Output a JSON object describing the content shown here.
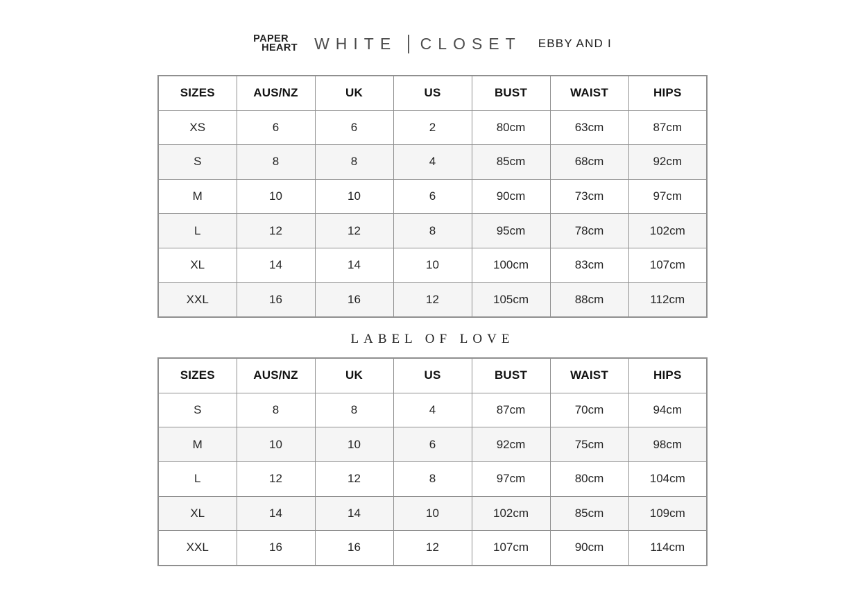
{
  "colors": {
    "row_alt": "#f5f5f5",
    "border": "#8f8f8f",
    "text": "#1c1c1c"
  },
  "brands": {
    "paper_heart_line1": "PAPER",
    "paper_heart_line2": "HEART",
    "white_closet_word1": "WHITE",
    "white_closet_word2": "CLOSET",
    "ebby_and_i": "EBBY AND I"
  },
  "label_of_love_title": "LABEL OF LOVE",
  "tables": [
    {
      "name": "paper-heart-white-closet-ebby-and-i-size-chart",
      "columns": [
        "SIZES",
        "AUS/NZ",
        "UK",
        "US",
        "BUST",
        "WAIST",
        "HIPS"
      ],
      "rows": [
        [
          "XS",
          "6",
          "6",
          "2",
          "80cm",
          "63cm",
          "87cm"
        ],
        [
          "S",
          "8",
          "8",
          "4",
          "85cm",
          "68cm",
          "92cm"
        ],
        [
          "M",
          "10",
          "10",
          "6",
          "90cm",
          "73cm",
          "97cm"
        ],
        [
          "L",
          "12",
          "12",
          "8",
          "95cm",
          "78cm",
          "102cm"
        ],
        [
          "XL",
          "14",
          "14",
          "10",
          "100cm",
          "83cm",
          "107cm"
        ],
        [
          "XXL",
          "16",
          "16",
          "12",
          "105cm",
          "88cm",
          "112cm"
        ]
      ]
    },
    {
      "name": "label-of-love-size-chart",
      "columns": [
        "SIZES",
        "AUS/NZ",
        "UK",
        "US",
        "BUST",
        "WAIST",
        "HIPS"
      ],
      "rows": [
        [
          "S",
          "8",
          "8",
          "4",
          "87cm",
          "70cm",
          "94cm"
        ],
        [
          "M",
          "10",
          "10",
          "6",
          "92cm",
          "75cm",
          "98cm"
        ],
        [
          "L",
          "12",
          "12",
          "8",
          "97cm",
          "80cm",
          "104cm"
        ],
        [
          "XL",
          "14",
          "14",
          "10",
          "102cm",
          "85cm",
          "109cm"
        ],
        [
          "XXL",
          "16",
          "16",
          "12",
          "107cm",
          "90cm",
          "114cm"
        ]
      ]
    }
  ]
}
